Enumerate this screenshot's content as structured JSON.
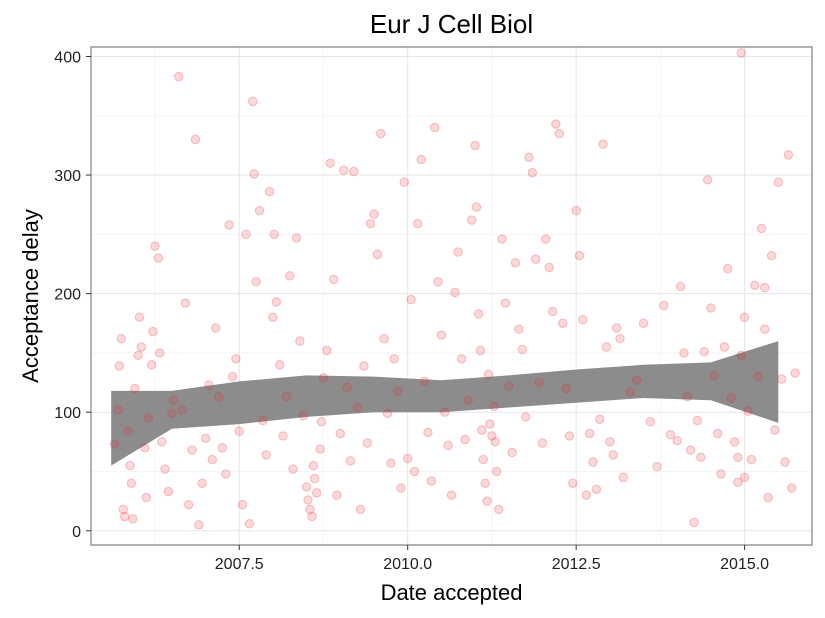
{
  "chart_data": {
    "type": "scatter",
    "title": "Eur J Cell Biol",
    "xlabel": "Date accepted",
    "ylabel": "Acceptance delay",
    "xlim": [
      2005.3,
      2016.0
    ],
    "ylim": [
      -12,
      408
    ],
    "x_ticks": [
      {
        "value": 2007.5,
        "label": "2007.5"
      },
      {
        "value": 2010.0,
        "label": "2010.0"
      },
      {
        "value": 2012.5,
        "label": "2012.5"
      },
      {
        "value": 2015.0,
        "label": "2015.0"
      }
    ],
    "y_ticks": [
      {
        "value": 0,
        "label": "0"
      },
      {
        "value": 100,
        "label": "100"
      },
      {
        "value": 200,
        "label": "200"
      },
      {
        "value": 300,
        "label": "300"
      },
      {
        "value": 400,
        "label": "400"
      }
    ],
    "grid": true,
    "point_color": "#e8262b",
    "point_alpha": 0.18,
    "smooth_band_color": "#8c8c8c",
    "smooth": {
      "x": [
        2005.6,
        2006.5,
        2007.5,
        2008.5,
        2009.5,
        2010.5,
        2011.5,
        2012.5,
        2013.5,
        2014.5,
        2015.5
      ],
      "upper": [
        118,
        118,
        126,
        131,
        130,
        127,
        131,
        136,
        140,
        142,
        160
      ],
      "lower": [
        55,
        86,
        90,
        96,
        100,
        100,
        104,
        108,
        112,
        110,
        91
      ]
    },
    "points": [
      [
        2005.65,
        73
      ],
      [
        2005.7,
        102
      ],
      [
        2005.72,
        139
      ],
      [
        2005.75,
        162
      ],
      [
        2005.78,
        18
      ],
      [
        2005.8,
        12
      ],
      [
        2005.85,
        84
      ],
      [
        2005.88,
        55
      ],
      [
        2005.9,
        40
      ],
      [
        2005.92,
        10
      ],
      [
        2005.95,
        120
      ],
      [
        2006.0,
        148
      ],
      [
        2006.02,
        180
      ],
      [
        2006.05,
        155
      ],
      [
        2006.1,
        70
      ],
      [
        2006.12,
        28
      ],
      [
        2006.15,
        95
      ],
      [
        2006.2,
        140
      ],
      [
        2006.22,
        168
      ],
      [
        2006.25,
        240
      ],
      [
        2006.3,
        230
      ],
      [
        2006.32,
        150
      ],
      [
        2006.35,
        75
      ],
      [
        2006.4,
        52
      ],
      [
        2006.45,
        33
      ],
      [
        2006.5,
        99
      ],
      [
        2006.52,
        110
      ],
      [
        2006.6,
        383
      ],
      [
        2006.65,
        102
      ],
      [
        2006.7,
        192
      ],
      [
        2006.75,
        22
      ],
      [
        2006.8,
        68
      ],
      [
        2006.85,
        330
      ],
      [
        2006.9,
        5
      ],
      [
        2006.95,
        40
      ],
      [
        2007.0,
        78
      ],
      [
        2007.05,
        123
      ],
      [
        2007.1,
        60
      ],
      [
        2007.15,
        171
      ],
      [
        2007.2,
        113
      ],
      [
        2007.25,
        70
      ],
      [
        2007.3,
        48
      ],
      [
        2007.35,
        258
      ],
      [
        2007.4,
        130
      ],
      [
        2007.45,
        145
      ],
      [
        2007.5,
        84
      ],
      [
        2007.55,
        22
      ],
      [
        2007.6,
        250
      ],
      [
        2007.65,
        6
      ],
      [
        2007.7,
        362
      ],
      [
        2007.72,
        301
      ],
      [
        2007.75,
        210
      ],
      [
        2007.8,
        270
      ],
      [
        2007.85,
        93
      ],
      [
        2007.9,
        64
      ],
      [
        2007.95,
        286
      ],
      [
        2008.0,
        180
      ],
      [
        2008.02,
        250
      ],
      [
        2008.05,
        193
      ],
      [
        2008.1,
        140
      ],
      [
        2008.15,
        80
      ],
      [
        2008.2,
        113
      ],
      [
        2008.25,
        215
      ],
      [
        2008.3,
        52
      ],
      [
        2008.35,
        247
      ],
      [
        2008.4,
        160
      ],
      [
        2008.45,
        97
      ],
      [
        2008.5,
        37
      ],
      [
        2008.52,
        26
      ],
      [
        2008.55,
        18
      ],
      [
        2008.58,
        12
      ],
      [
        2008.6,
        55
      ],
      [
        2008.62,
        44
      ],
      [
        2008.65,
        32
      ],
      [
        2008.7,
        69
      ],
      [
        2008.72,
        92
      ],
      [
        2008.75,
        129
      ],
      [
        2008.8,
        152
      ],
      [
        2008.85,
        310
      ],
      [
        2008.9,
        212
      ],
      [
        2008.95,
        30
      ],
      [
        2009.0,
        82
      ],
      [
        2009.05,
        304
      ],
      [
        2009.1,
        121
      ],
      [
        2009.15,
        59
      ],
      [
        2009.2,
        303
      ],
      [
        2009.25,
        104
      ],
      [
        2009.3,
        18
      ],
      [
        2009.35,
        139
      ],
      [
        2009.4,
        74
      ],
      [
        2009.45,
        259
      ],
      [
        2009.5,
        267
      ],
      [
        2009.55,
        233
      ],
      [
        2009.6,
        335
      ],
      [
        2009.65,
        162
      ],
      [
        2009.7,
        99
      ],
      [
        2009.75,
        57
      ],
      [
        2009.8,
        145
      ],
      [
        2009.85,
        118
      ],
      [
        2009.9,
        36
      ],
      [
        2009.95,
        294
      ],
      [
        2010.0,
        61
      ],
      [
        2010.05,
        195
      ],
      [
        2010.1,
        50
      ],
      [
        2010.15,
        259
      ],
      [
        2010.2,
        313
      ],
      [
        2010.25,
        126
      ],
      [
        2010.3,
        83
      ],
      [
        2010.35,
        42
      ],
      [
        2010.4,
        340
      ],
      [
        2010.45,
        210
      ],
      [
        2010.5,
        165
      ],
      [
        2010.55,
        100
      ],
      [
        2010.6,
        72
      ],
      [
        2010.65,
        30
      ],
      [
        2010.7,
        201
      ],
      [
        2010.75,
        235
      ],
      [
        2010.8,
        145
      ],
      [
        2010.85,
        77
      ],
      [
        2010.9,
        110
      ],
      [
        2010.95,
        262
      ],
      [
        2011.0,
        325
      ],
      [
        2011.02,
        273
      ],
      [
        2011.05,
        183
      ],
      [
        2011.08,
        152
      ],
      [
        2011.1,
        85
      ],
      [
        2011.12,
        60
      ],
      [
        2011.15,
        40
      ],
      [
        2011.18,
        25
      ],
      [
        2011.2,
        132
      ],
      [
        2011.22,
        90
      ],
      [
        2011.25,
        80
      ],
      [
        2011.28,
        105
      ],
      [
        2011.3,
        75
      ],
      [
        2011.32,
        50
      ],
      [
        2011.35,
        18
      ],
      [
        2011.4,
        246
      ],
      [
        2011.45,
        192
      ],
      [
        2011.5,
        122
      ],
      [
        2011.55,
        66
      ],
      [
        2011.6,
        226
      ],
      [
        2011.65,
        170
      ],
      [
        2011.7,
        153
      ],
      [
        2011.75,
        96
      ],
      [
        2011.8,
        315
      ],
      [
        2011.85,
        302
      ],
      [
        2011.9,
        229
      ],
      [
        2011.95,
        125
      ],
      [
        2012.0,
        74
      ],
      [
        2012.05,
        246
      ],
      [
        2012.1,
        222
      ],
      [
        2012.15,
        185
      ],
      [
        2012.2,
        343
      ],
      [
        2012.25,
        335
      ],
      [
        2012.3,
        175
      ],
      [
        2012.35,
        120
      ],
      [
        2012.4,
        80
      ],
      [
        2012.45,
        40
      ],
      [
        2012.5,
        270
      ],
      [
        2012.55,
        232
      ],
      [
        2012.6,
        178
      ],
      [
        2012.65,
        30
      ],
      [
        2012.7,
        82
      ],
      [
        2012.75,
        58
      ],
      [
        2012.8,
        35
      ],
      [
        2012.85,
        94
      ],
      [
        2012.9,
        326
      ],
      [
        2012.95,
        155
      ],
      [
        2013.0,
        75
      ],
      [
        2013.05,
        64
      ],
      [
        2013.1,
        171
      ],
      [
        2013.15,
        162
      ],
      [
        2013.2,
        45
      ],
      [
        2013.3,
        117
      ],
      [
        2013.4,
        127
      ],
      [
        2013.5,
        175
      ],
      [
        2013.6,
        92
      ],
      [
        2013.7,
        54
      ],
      [
        2013.8,
        190
      ],
      [
        2013.9,
        81
      ],
      [
        2014.0,
        76
      ],
      [
        2014.05,
        206
      ],
      [
        2014.1,
        150
      ],
      [
        2014.15,
        113
      ],
      [
        2014.2,
        68
      ],
      [
        2014.25,
        7
      ],
      [
        2014.3,
        93
      ],
      [
        2014.35,
        62
      ],
      [
        2014.4,
        151
      ],
      [
        2014.45,
        296
      ],
      [
        2014.5,
        188
      ],
      [
        2014.55,
        131
      ],
      [
        2014.6,
        82
      ],
      [
        2014.65,
        48
      ],
      [
        2014.7,
        155
      ],
      [
        2014.75,
        221
      ],
      [
        2014.8,
        112
      ],
      [
        2014.85,
        75
      ],
      [
        2014.9,
        41
      ],
      [
        2014.95,
        148
      ],
      [
        2015.0,
        180
      ],
      [
        2015.05,
        101
      ],
      [
        2015.1,
        60
      ],
      [
        2015.15,
        207
      ],
      [
        2015.2,
        130
      ],
      [
        2015.25,
        255
      ],
      [
        2015.3,
        170
      ],
      [
        2015.35,
        28
      ],
      [
        2015.4,
        232
      ],
      [
        2015.45,
        85
      ],
      [
        2015.5,
        294
      ],
      [
        2015.55,
        128
      ],
      [
        2015.6,
        58
      ],
      [
        2015.65,
        317
      ],
      [
        2015.7,
        36
      ],
      [
        2015.75,
        133
      ],
      [
        2014.95,
        403
      ],
      [
        2015.3,
        205
      ],
      [
        2015.0,
        45
      ],
      [
        2014.9,
        62
      ]
    ]
  }
}
